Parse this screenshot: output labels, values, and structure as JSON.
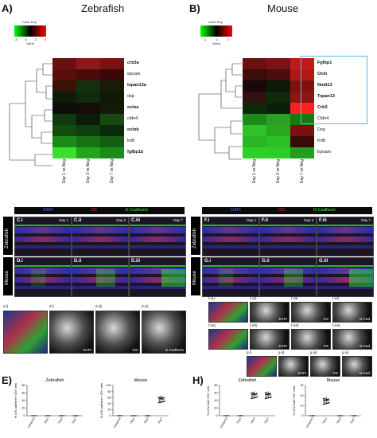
{
  "panels": {
    "A": {
      "letter": "A)",
      "title": "Zebrafish"
    },
    "B": {
      "letter": "B)",
      "title": "Mouse"
    },
    "E": {
      "letter": "E)"
    },
    "H": {
      "letter": "H)"
    }
  },
  "color_key": {
    "title": "Color Key",
    "label": "Value",
    "ticks_zf": [
      "-4",
      "0",
      "2",
      "4"
    ],
    "ticks_ms": [
      "-1",
      "0",
      "1"
    ]
  },
  "heatmap_zf": {
    "rows": [
      "crb3a",
      "epcam",
      "tspan13a",
      "dsp",
      "oclna",
      "cldn4",
      "oclnb",
      "krt8",
      "fgfbp1b"
    ],
    "bold": [
      true,
      false,
      true,
      false,
      true,
      false,
      true,
      false,
      true
    ],
    "cols": [
      "Day 1 vs Neg",
      "Day 3 vs Neg",
      "Day 7 vs Neg"
    ],
    "colors": [
      [
        "#6a1010",
        "#8a1a1a",
        "#7a1212"
      ],
      [
        "#5a0d0d",
        "#4a0a0a",
        "#3a0808"
      ],
      [
        "#3a1208",
        "#14300e",
        "#1a1a08"
      ],
      [
        "#0e1a0a",
        "#102a0c",
        "#101808"
      ],
      [
        "#0e0e0a",
        "#130f08",
        "#151a08"
      ],
      [
        "#103a0c",
        "#0c1c08",
        "#164a10"
      ],
      [
        "#124a10",
        "#103e0c",
        "#0c2a0a"
      ],
      [
        "#1b8a18",
        "#167212",
        "#136014"
      ],
      [
        "#39e030",
        "#22a51c",
        "#1c8c18"
      ]
    ]
  },
  "heatmap_ms": {
    "rows": [
      "Fgfbp1",
      "Ocln",
      "Nudt13",
      "Tspan13",
      "Crb3",
      "Cldn4",
      "Dsp",
      "Krt8",
      "Epcam"
    ],
    "bold": [
      true,
      true,
      true,
      true,
      true,
      false,
      false,
      false,
      false
    ],
    "cols": [
      "Day 1 vs Neg",
      "Day 3 vs Neg",
      "Day 7 vs Neg"
    ],
    "colors": [
      [
        "#6a1010",
        "#7a1414",
        "#c01a1a"
      ],
      [
        "#3a0c0c",
        "#4a0e0e",
        "#b01818"
      ],
      [
        "#1a0808",
        "#0c1a08",
        "#801010"
      ],
      [
        "#301010",
        "#0e2a0a",
        "#901414"
      ],
      [
        "#0c2a0a",
        "#0a200a",
        "#ff2020"
      ],
      [
        "#1c8a18",
        "#2aa022",
        "#167a12"
      ],
      [
        "#30c028",
        "#2aa822",
        "#7a1010"
      ],
      [
        "#2ab524",
        "#2cc026",
        "#3a0a0a"
      ],
      [
        "#2fd028",
        "#2ecc26",
        "#22a01c"
      ]
    ]
  },
  "legend_C": {
    "dapi": "DAPI",
    "gs": "GS",
    "stain": "E-Cadherin"
  },
  "legend_F": {
    "dapi": "DAPI",
    "gs": "GS",
    "stain": "N-Cadherin"
  },
  "micro_C": {
    "side_top": "Zebrafish",
    "side_bottom": "Mouse",
    "panels": [
      {
        "id": "C.i",
        "day": "Day 1"
      },
      {
        "id": "C.ii",
        "day": "Day 3"
      },
      {
        "id": "C.iii",
        "day": "Day 7"
      },
      {
        "id": "D.i",
        "day": ""
      },
      {
        "id": "D.ii",
        "day": ""
      },
      {
        "id": "D.iii",
        "day": ""
      }
    ],
    "layers": [
      "ONL",
      "INL",
      "GCL"
    ]
  },
  "micro_F": {
    "side_top": "Zebrafish",
    "side_bottom": "Mouse",
    "panels": [
      {
        "id": "F.i",
        "day": "Day 1"
      },
      {
        "id": "F.ii",
        "day": "Day 3"
      },
      {
        "id": "F.iii",
        "day": "Day 7"
      },
      {
        "id": "G.i",
        "day": ""
      },
      {
        "id": "G.ii",
        "day": ""
      },
      {
        "id": "G.iii",
        "day": ""
      }
    ]
  },
  "zoom_d": [
    {
      "id": "d.i)",
      "ch": ""
    },
    {
      "id": "d.ii",
      "ch": "DAPI"
    },
    {
      "id": "d.iii)",
      "ch": "GS"
    },
    {
      "id": "d.iv)",
      "ch": "E-Cadherin"
    }
  ],
  "zoom_f_row1": [
    {
      "id": "f.ii1)",
      "ch": ""
    },
    {
      "id": "f.ii2)",
      "ch": "DAPI"
    },
    {
      "id": "f.ii3)",
      "ch": "GS"
    },
    {
      "id": "f.ii4)",
      "ch": "N-Cad"
    }
  ],
  "zoom_f_row2": [
    {
      "id": "f.iii1)",
      "ch": ""
    },
    {
      "id": "f.iii2)",
      "ch": "DAPI"
    },
    {
      "id": "f.iii3)",
      "ch": "GS"
    },
    {
      "id": "f.iii4)",
      "ch": "N-Cad"
    }
  ],
  "zoom_g": [
    {
      "id": "g.i)",
      "ch": ""
    },
    {
      "id": "g.ii)",
      "ch": "DAPI"
    },
    {
      "id": "g.iii)",
      "ch": "GS"
    },
    {
      "id": "g.iv)",
      "ch": "N-Cad"
    }
  ],
  "chart_data": [
    {
      "type": "scatter",
      "title": "Zebrafish",
      "ylabel": "% of E-cadherin+ GS+ cells",
      "categories": [
        "Uninjured",
        "Day1",
        "Day3",
        "Day7"
      ],
      "ylim": [
        0,
        80
      ],
      "yticks": [
        "0",
        "20",
        "40",
        "60",
        "80"
      ],
      "means": [
        0,
        0,
        0,
        0
      ]
    },
    {
      "type": "scatter",
      "title": "Mouse",
      "ylabel": "% of E-cadherin+ GS+ cells",
      "categories": [
        "Uninjured",
        "Day1",
        "Day3",
        "Day7"
      ],
      "ylim": [
        0,
        100
      ],
      "yticks": [
        "0",
        "20",
        "40",
        "60",
        "80",
        "100"
      ],
      "means": [
        0,
        0,
        0,
        55
      ]
    },
    {
      "type": "scatter",
      "title": "Zebrafish",
      "ylabel": "% of N-Cad+ GS+ cells",
      "categories": [
        "Uninjured",
        "Day1",
        "Day3",
        "Day7"
      ],
      "ylim": [
        0,
        80
      ],
      "yticks": [
        "0",
        "20",
        "40",
        "60",
        "80"
      ],
      "means": [
        0,
        0,
        55,
        55
      ]
    },
    {
      "type": "scatter",
      "title": "Mouse",
      "ylabel": "% of N-Cad+ GS+ cells",
      "categories": [
        "Uninjured",
        "Day1",
        "Day3",
        "Day7"
      ],
      "ylim": [
        0,
        30
      ],
      "yticks": [
        "0",
        "10",
        "20",
        "30"
      ],
      "means": [
        0,
        15,
        0,
        0
      ]
    }
  ]
}
